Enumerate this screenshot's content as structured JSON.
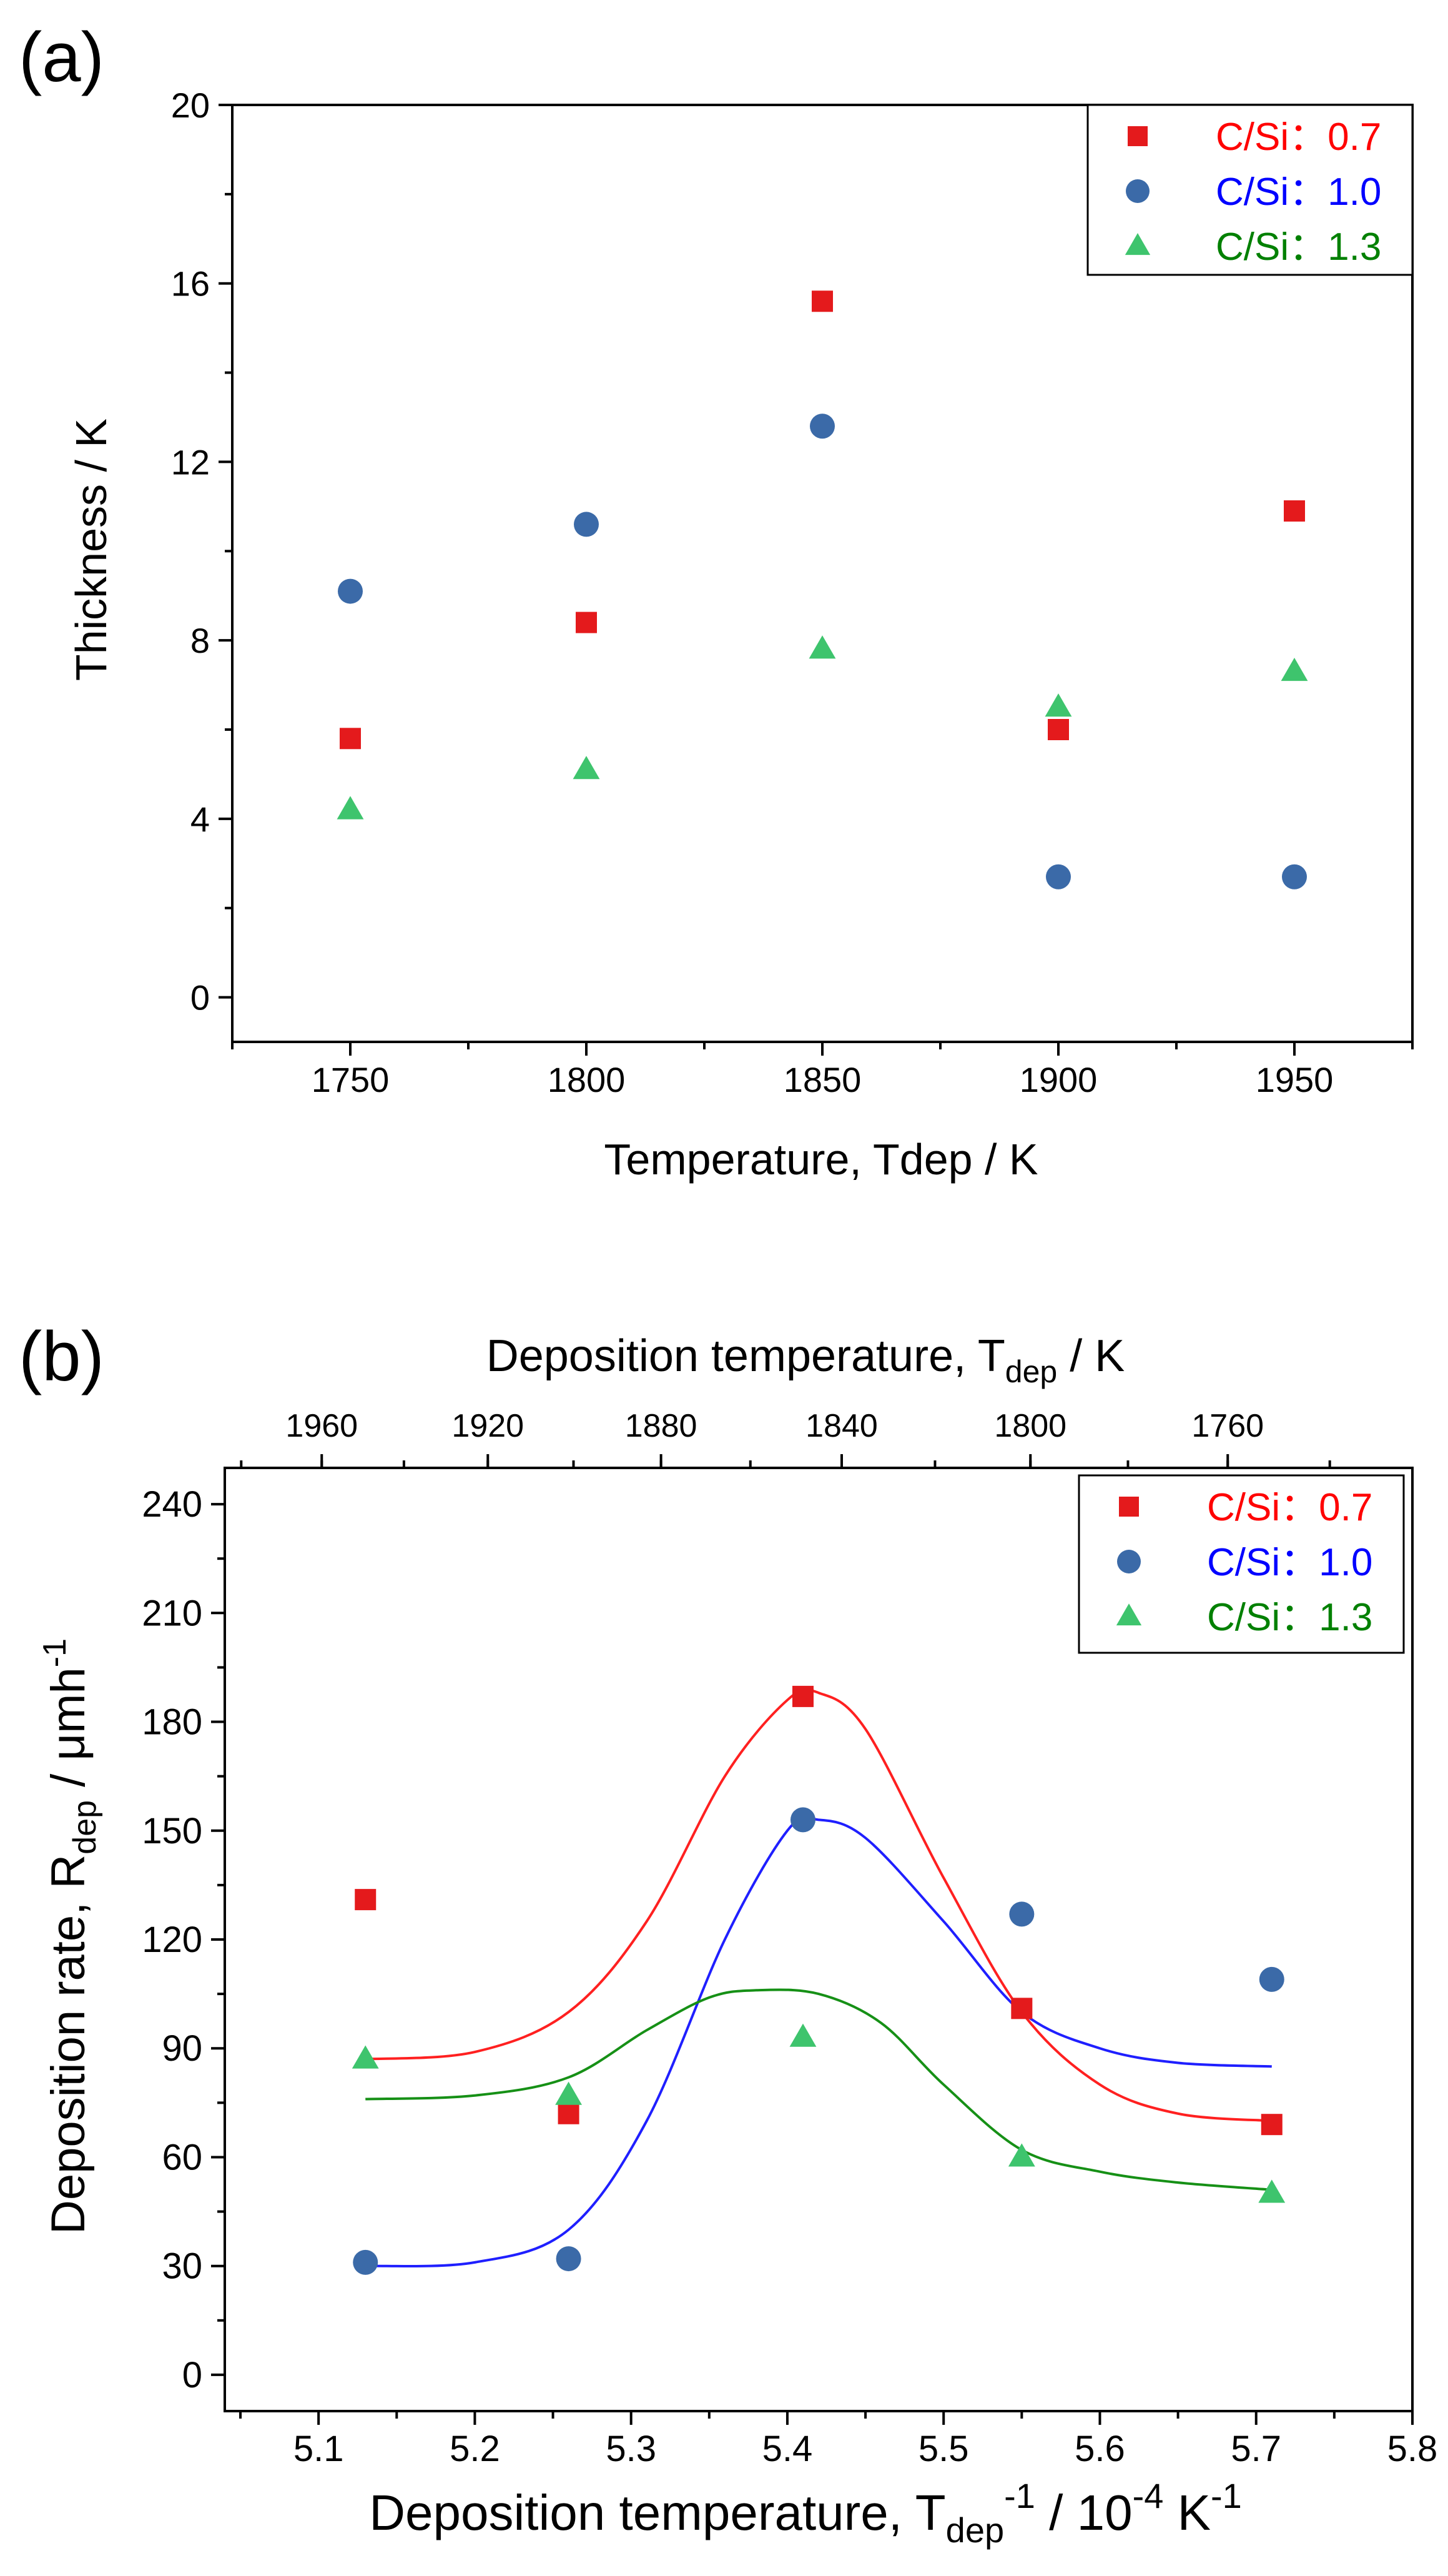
{
  "colors": {
    "red": "#e41a1c",
    "blue": "#3b6aa8",
    "green": "#3ec46d",
    "red_text": "#ff0000",
    "blue_text": "#0000ff",
    "green_text": "#008000",
    "red_fit": "#ff2020",
    "blue_fit": "#1f1fff",
    "green_fit": "#169016"
  },
  "chart_data": [
    {
      "panel_label": "(a)",
      "type": "scatter",
      "xlabel": "Temperature, Tdep / K",
      "ylabel": "Thickness / K",
      "xlim": [
        1725,
        1975
      ],
      "ylim": [
        -1,
        20
      ],
      "xticks": [
        1750,
        1800,
        1850,
        1900,
        1950
      ],
      "yticks": [
        0,
        4,
        8,
        12,
        16,
        20
      ],
      "legend_position": "top-right",
      "series": [
        {
          "name": "C/Si：0.7",
          "marker": "square",
          "color_key": "red",
          "text_color_key": "red_text",
          "x": [
            1750,
            1800,
            1850,
            1900,
            1950
          ],
          "y": [
            5.8,
            8.4,
            15.6,
            6.0,
            10.9
          ]
        },
        {
          "name": "C/Si：1.0",
          "marker": "circle",
          "color_key": "blue",
          "text_color_key": "blue_text",
          "x": [
            1750,
            1800,
            1850,
            1900,
            1950
          ],
          "y": [
            9.1,
            10.6,
            12.8,
            2.7,
            2.7
          ]
        },
        {
          "name": "C/Si：1.3",
          "marker": "triangle",
          "color_key": "green",
          "text_color_key": "green_text",
          "x": [
            1750,
            1800,
            1850,
            1900,
            1950
          ],
          "y": [
            4.2,
            5.1,
            7.8,
            6.5,
            7.3
          ]
        }
      ]
    },
    {
      "panel_label": "(b)",
      "type": "scatter",
      "xlabel": {
        "main": "Deposition temperature, T",
        "sub": "dep",
        "sup1": "-1",
        "mid": " / 10",
        "sup2": "-4",
        "unit": " K",
        "sup3": "-1"
      },
      "x2label": {
        "main": "Deposition temperature, T",
        "sub": "dep",
        "unit": " / K"
      },
      "ylabel": {
        "main": "Deposition rate, R",
        "sub": "dep",
        "unit": " / μmh",
        "sup": "-1"
      },
      "xlim": [
        5.04,
        5.8
      ],
      "ylim": [
        -10,
        250
      ],
      "xticks": [
        5.1,
        5.2,
        5.3,
        5.4,
        5.5,
        5.6,
        5.7,
        5.8
      ],
      "yticks": [
        0,
        30,
        60,
        90,
        120,
        150,
        180,
        210,
        240
      ],
      "x2ticks": [
        1960,
        1920,
        1880,
        1840,
        1800,
        1760
      ],
      "legend_position": "top-right",
      "series": [
        {
          "name": "C/Si：0.7",
          "marker": "square",
          "color_key": "red",
          "text_color_key": "red_text",
          "x": [
            5.13,
            5.26,
            5.41,
            5.55,
            5.71
          ],
          "y": [
            131,
            72,
            187,
            101,
            69
          ],
          "fit": {
            "x": [
              5.13,
              5.2,
              5.26,
              5.31,
              5.36,
              5.4,
              5.42,
              5.45,
              5.5,
              5.55,
              5.6,
              5.65,
              5.71
            ],
            "y": [
              87,
              89,
              100,
              125,
              165,
              186,
              188,
              178,
              137,
              100,
              80,
              72,
              70
            ]
          }
        },
        {
          "name": "C/Si：1.0",
          "marker": "circle",
          "color_key": "blue",
          "text_color_key": "blue_text",
          "x": [
            5.13,
            5.26,
            5.41,
            5.55,
            5.71
          ],
          "y": [
            31,
            32,
            153,
            127,
            109
          ],
          "fit": {
            "x": [
              5.13,
              5.2,
              5.26,
              5.31,
              5.36,
              5.4,
              5.42,
              5.45,
              5.5,
              5.55,
              5.6,
              5.65,
              5.71
            ],
            "y": [
              30,
              31,
              40,
              70,
              120,
              150,
              153,
              148,
              125,
              100,
              90,
              86,
              85
            ]
          }
        },
        {
          "name": "C/Si：1.3",
          "marker": "triangle",
          "color_key": "green",
          "text_color_key": "green_text",
          "x": [
            5.13,
            5.26,
            5.41,
            5.55,
            5.71
          ],
          "y": [
            87,
            77,
            93,
            60,
            50
          ],
          "fit": {
            "x": [
              5.13,
              5.2,
              5.26,
              5.31,
              5.35,
              5.38,
              5.42,
              5.46,
              5.5,
              5.55,
              5.6,
              5.65,
              5.71
            ],
            "y": [
              76,
              77,
              82,
              95,
              104,
              106,
              105,
              97,
              80,
              62,
              56,
              53,
              51
            ]
          }
        }
      ]
    }
  ]
}
